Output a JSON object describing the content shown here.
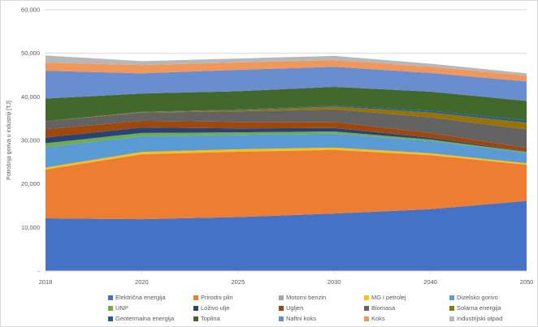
{
  "chart": {
    "y_axis_title": "Potrošnja goriva u industriji [TJ]",
    "y_ticks": [
      {
        "value": 0,
        "label": "-"
      },
      {
        "value": 10000,
        "label": "10,000"
      },
      {
        "value": 20000,
        "label": "20,000"
      },
      {
        "value": 30000,
        "label": "30,000"
      },
      {
        "value": 40000,
        "label": "40,000"
      },
      {
        "value": 50000,
        "label": "50,000"
      },
      {
        "value": 60000,
        "label": "60,000"
      }
    ],
    "x_tick_labels": [
      "2018",
      "2020",
      "2025",
      "2030",
      "2040",
      "2050"
    ],
    "grid_color": "#d9d9d9",
    "axis_text_color": "#595959"
  },
  "chart_data": {
    "type": "area",
    "stacked": true,
    "title": "",
    "xlabel": "",
    "ylabel": "Potrošnja goriva u industriji [TJ]",
    "ylim": [
      0,
      60000
    ],
    "y_tick_step": 10000,
    "grid": true,
    "legend_position": "bottom",
    "categories": [
      2018,
      2020,
      2025,
      2030,
      2040,
      2050
    ],
    "series": [
      {
        "name": "Električna energija",
        "color": "#4472C4",
        "values": [
          12100,
          11900,
          12400,
          13200,
          14200,
          16100
        ]
      },
      {
        "name": "Prirodni plin",
        "color": "#ED7D31",
        "values": [
          11200,
          14900,
          15000,
          14600,
          12400,
          8300
        ]
      },
      {
        "name": "Motorni benzin",
        "color": "#A5A5A5",
        "values": [
          50,
          50,
          50,
          50,
          50,
          50
        ]
      },
      {
        "name": "MG i petrolej",
        "color": "#FFC000",
        "values": [
          400,
          500,
          500,
          500,
          400,
          300
        ]
      },
      {
        "name": "Dizelsko gorivo",
        "color": "#5B9BD5",
        "values": [
          4700,
          3600,
          3300,
          3200,
          2800,
          2400
        ]
      },
      {
        "name": "UNP",
        "color": "#70AD47",
        "values": [
          900,
          750,
          600,
          500,
          350,
          200
        ]
      },
      {
        "name": "Loživo ulje",
        "color": "#264478",
        "values": [
          1300,
          1250,
          900,
          800,
          400,
          100
        ]
      },
      {
        "name": "Ugljen",
        "color": "#9E480E",
        "values": [
          1900,
          1550,
          1500,
          1400,
          1100,
          800
        ]
      },
      {
        "name": "Biomasa",
        "color": "#636363",
        "values": [
          1850,
          1900,
          2400,
          2900,
          3600,
          4300
        ]
      },
      {
        "name": "Solarna energija",
        "color": "#997300",
        "values": [
          0,
          100,
          300,
          600,
          1100,
          1500
        ]
      },
      {
        "name": "Geotermalna energija",
        "color": "#255E91",
        "values": [
          0,
          50,
          150,
          250,
          400,
          550
        ]
      },
      {
        "name": "Toplina",
        "color": "#43682B",
        "values": [
          5200,
          4200,
          4200,
          4300,
          4400,
          4450
        ]
      },
      {
        "name": "Naftni koks",
        "color": "#698ED0",
        "values": [
          6400,
          4650,
          4900,
          4600,
          4300,
          4500
        ]
      },
      {
        "name": "Koks",
        "color": "#F1975A",
        "values": [
          1850,
          1900,
          1700,
          1550,
          1400,
          1300
        ]
      },
      {
        "name": "Industrijski otpad",
        "color": "#B7B7B7",
        "values": [
          1650,
          900,
          900,
          950,
          700,
          550
        ]
      }
    ]
  }
}
